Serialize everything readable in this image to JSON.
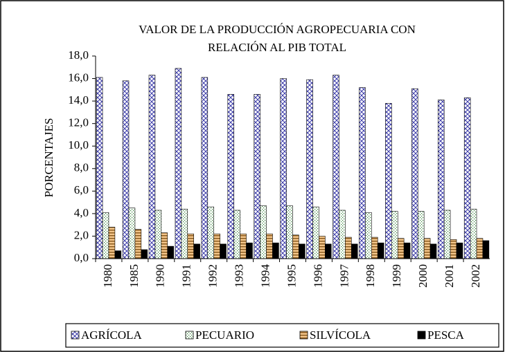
{
  "chart_data": {
    "type": "bar",
    "title": [
      "VALOR DE LA PRODUCCIÓN AGROPECUARIA CON",
      "RELACIÓN AL PIB TOTAL"
    ],
    "y_label": "PORCENTAJES",
    "categories": [
      "1980",
      "1985",
      "1990",
      "1991",
      "1992",
      "1993",
      "1994",
      "1995",
      "1996",
      "1997",
      "1998",
      "1999",
      "2000",
      "2001",
      "2002"
    ],
    "series": [
      {
        "name": "AGRÍCOLA",
        "color": "#3a3aa8",
        "pattern": "crosshatch",
        "values": [
          16.1,
          15.8,
          16.3,
          16.9,
          16.1,
          14.6,
          14.6,
          16.0,
          15.9,
          16.3,
          15.2,
          13.8,
          15.1,
          14.1,
          14.3
        ]
      },
      {
        "name": "PECUARIO",
        "color": "#2e7d32",
        "pattern": "dots",
        "values": [
          4.1,
          4.5,
          4.3,
          4.4,
          4.6,
          4.3,
          4.7,
          4.7,
          4.6,
          4.3,
          4.1,
          4.2,
          4.2,
          4.3,
          4.4
        ]
      },
      {
        "name": "SILVÍCOLA",
        "color": "#8a5a1e",
        "pattern": "stripes",
        "values": [
          2.8,
          2.6,
          2.3,
          2.2,
          2.2,
          2.2,
          2.2,
          2.1,
          2.0,
          1.9,
          1.9,
          1.8,
          1.8,
          1.7,
          1.8
        ]
      },
      {
        "name": "PESCA",
        "color": "#000000",
        "pattern": "solid",
        "values": [
          0.7,
          0.8,
          1.1,
          1.3,
          1.3,
          1.4,
          1.4,
          1.3,
          1.3,
          1.3,
          1.4,
          1.4,
          1.3,
          1.4,
          1.6
        ]
      }
    ],
    "ylim": [
      0,
      18
    ],
    "yticks": [
      {
        "value": 0,
        "label": "0,0"
      },
      {
        "value": 2,
        "label": "2,0"
      },
      {
        "value": 4,
        "label": "4,0"
      },
      {
        "value": 6,
        "label": "6,0"
      },
      {
        "value": 8,
        "label": "8,0"
      },
      {
        "value": 10,
        "label": "10,0"
      },
      {
        "value": 12,
        "label": "12,0"
      },
      {
        "value": 14,
        "label": "14,0"
      },
      {
        "value": 16,
        "label": "16,0"
      },
      {
        "value": 18,
        "label": "18,0"
      }
    ],
    "legend": "bottom"
  }
}
